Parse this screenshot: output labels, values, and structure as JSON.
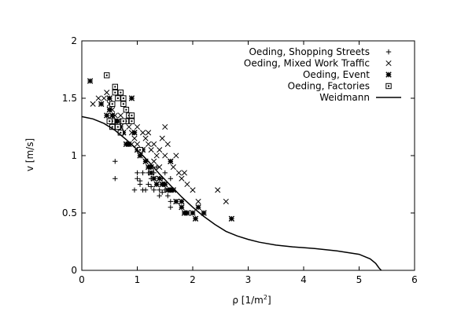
{
  "chart_data": {
    "type": "scatter",
    "title": "",
    "xlabel": "ρ [1/m",
    "xlabel_sup": "2",
    "xlabel_suffix": "]",
    "ylabel": "v [m/s]",
    "xlim": [
      0,
      6
    ],
    "ylim": [
      0,
      2
    ],
    "x_ticks": [
      "0",
      "1",
      "2",
      "3",
      "4",
      "5",
      "6"
    ],
    "y_ticks": [
      "0",
      "0.5",
      "1",
      "1.5",
      "2"
    ],
    "grid": false,
    "legend_position": "top-right",
    "series": [
      {
        "name": "Oeding, Shopping Streets",
        "marker": "plus",
        "points": [
          [
            0.6,
            0.8
          ],
          [
            0.6,
            0.95
          ],
          [
            0.95,
            0.7
          ],
          [
            1.0,
            0.8
          ],
          [
            1.05,
            0.75
          ],
          [
            1.1,
            0.7
          ],
          [
            1.15,
            0.7
          ],
          [
            1.2,
            0.75
          ],
          [
            1.25,
            0.8
          ],
          [
            1.3,
            0.7
          ],
          [
            1.35,
            0.75
          ],
          [
            1.4,
            0.7
          ],
          [
            1.4,
            0.65
          ],
          [
            1.45,
            0.8
          ],
          [
            1.5,
            0.7
          ],
          [
            1.55,
            0.65
          ],
          [
            1.6,
            0.6
          ],
          [
            1.2,
            0.85
          ],
          [
            1.3,
            0.85
          ],
          [
            1.5,
            0.85
          ],
          [
            1.35,
            0.9
          ],
          [
            1.6,
            0.8
          ],
          [
            1.65,
            0.7
          ],
          [
            1.0,
            0.85
          ],
          [
            1.1,
            0.85
          ],
          [
            1.05,
            0.78
          ],
          [
            1.25,
            0.73
          ],
          [
            1.45,
            0.68
          ],
          [
            1.5,
            0.75
          ],
          [
            1.6,
            0.55
          ]
        ]
      },
      {
        "name": "Oeding, Mixed Work Traffic",
        "marker": "cross",
        "points": [
          [
            0.2,
            1.45
          ],
          [
            0.3,
            1.5
          ],
          [
            0.35,
            1.45
          ],
          [
            0.4,
            1.5
          ],
          [
            0.45,
            1.55
          ],
          [
            0.5,
            1.45
          ],
          [
            0.55,
            1.4
          ],
          [
            0.6,
            1.35
          ],
          [
            0.65,
            1.3
          ],
          [
            0.7,
            1.5
          ],
          [
            0.75,
            1.45
          ],
          [
            0.8,
            1.3
          ],
          [
            0.85,
            1.25
          ],
          [
            0.9,
            1.2
          ],
          [
            0.95,
            1.15
          ],
          [
            1.0,
            1.1
          ],
          [
            1.05,
            1.05
          ],
          [
            1.1,
            1.2
          ],
          [
            1.15,
            1.15
          ],
          [
            1.2,
            1.1
          ],
          [
            1.25,
            1.05
          ],
          [
            1.3,
            1.1
          ],
          [
            1.35,
            1.0
          ],
          [
            1.4,
            1.05
          ],
          [
            1.45,
            1.15
          ],
          [
            1.5,
            1.25
          ],
          [
            1.55,
            1.1
          ],
          [
            1.6,
            0.95
          ],
          [
            1.65,
            0.9
          ],
          [
            1.7,
            1.0
          ],
          [
            1.75,
            0.85
          ],
          [
            1.8,
            0.8
          ],
          [
            1.85,
            0.85
          ],
          [
            1.9,
            0.75
          ],
          [
            2.0,
            0.7
          ],
          [
            2.1,
            0.6
          ],
          [
            2.2,
            0.5
          ],
          [
            2.45,
            0.7
          ],
          [
            2.6,
            0.6
          ],
          [
            0.9,
            1.1
          ],
          [
            1.0,
            1.25
          ],
          [
            1.2,
            1.2
          ],
          [
            1.3,
            0.95
          ],
          [
            1.4,
            0.9
          ],
          [
            1.5,
            1.0
          ],
          [
            0.6,
            1.3
          ],
          [
            0.7,
            1.35
          ],
          [
            0.8,
            1.4
          ]
        ]
      },
      {
        "name": "Oeding, Event",
        "marker": "star",
        "points": [
          [
            0.15,
            1.65
          ],
          [
            0.35,
            1.45
          ],
          [
            0.5,
            1.5
          ],
          [
            0.5,
            1.4
          ],
          [
            0.6,
            1.3
          ],
          [
            0.65,
            1.3
          ],
          [
            0.7,
            1.25
          ],
          [
            0.75,
            1.2
          ],
          [
            0.8,
            1.1
          ],
          [
            0.85,
            1.1
          ],
          [
            0.9,
            1.3
          ],
          [
            0.9,
            1.5
          ],
          [
            0.95,
            1.2
          ],
          [
            1.0,
            1.05
          ],
          [
            1.05,
            1.0
          ],
          [
            1.1,
            1.05
          ],
          [
            1.15,
            0.95
          ],
          [
            1.2,
            0.9
          ],
          [
            1.25,
            0.85
          ],
          [
            1.3,
            0.8
          ],
          [
            1.35,
            0.75
          ],
          [
            1.4,
            0.8
          ],
          [
            1.45,
            0.75
          ],
          [
            1.5,
            0.75
          ],
          [
            1.55,
            0.7
          ],
          [
            1.6,
            0.7
          ],
          [
            1.65,
            0.7
          ],
          [
            1.7,
            0.6
          ],
          [
            1.8,
            0.55
          ],
          [
            1.8,
            0.6
          ],
          [
            1.85,
            0.5
          ],
          [
            1.9,
            0.5
          ],
          [
            2.0,
            0.5
          ],
          [
            2.05,
            0.45
          ],
          [
            2.1,
            0.55
          ],
          [
            2.2,
            0.5
          ],
          [
            2.7,
            0.45
          ],
          [
            0.45,
            1.35
          ],
          [
            0.55,
            1.35
          ],
          [
            0.85,
            1.3
          ],
          [
            1.25,
            0.9
          ],
          [
            1.6,
            0.95
          ]
        ]
      },
      {
        "name": "Oeding, Factories",
        "marker": "boxed-dot",
        "points": [
          [
            0.45,
            1.7
          ],
          [
            0.55,
            1.45
          ],
          [
            0.6,
            1.6
          ],
          [
            0.6,
            1.55
          ],
          [
            0.65,
            1.5
          ],
          [
            0.7,
            1.55
          ],
          [
            0.75,
            1.5
          ],
          [
            0.8,
            1.4
          ],
          [
            0.85,
            1.35
          ],
          [
            0.9,
            1.35
          ],
          [
            0.9,
            1.3
          ],
          [
            0.8,
            1.3
          ],
          [
            0.75,
            1.3
          ],
          [
            0.7,
            1.2
          ],
          [
            0.65,
            1.25
          ],
          [
            0.55,
            1.3
          ],
          [
            0.5,
            1.3
          ],
          [
            0.55,
            1.25
          ],
          [
            0.75,
            1.45
          ],
          [
            1.05,
            1.05
          ]
        ]
      },
      {
        "name": "Weidmann",
        "marker": "line",
        "line_points": [
          [
            0.0,
            1.34
          ],
          [
            0.2,
            1.32
          ],
          [
            0.4,
            1.28
          ],
          [
            0.6,
            1.22
          ],
          [
            0.8,
            1.14
          ],
          [
            1.0,
            1.05
          ],
          [
            1.2,
            0.95
          ],
          [
            1.4,
            0.84
          ],
          [
            1.6,
            0.74
          ],
          [
            1.8,
            0.64
          ],
          [
            2.0,
            0.55
          ],
          [
            2.2,
            0.47
          ],
          [
            2.4,
            0.4
          ],
          [
            2.6,
            0.34
          ],
          [
            2.8,
            0.3
          ],
          [
            3.0,
            0.27
          ],
          [
            3.2,
            0.245
          ],
          [
            3.5,
            0.22
          ],
          [
            3.8,
            0.205
          ],
          [
            4.2,
            0.19
          ],
          [
            4.6,
            0.17
          ],
          [
            5.0,
            0.14
          ],
          [
            5.2,
            0.1
          ],
          [
            5.3,
            0.06
          ],
          [
            5.36,
            0.02
          ],
          [
            5.4,
            0.0
          ]
        ]
      }
    ]
  }
}
